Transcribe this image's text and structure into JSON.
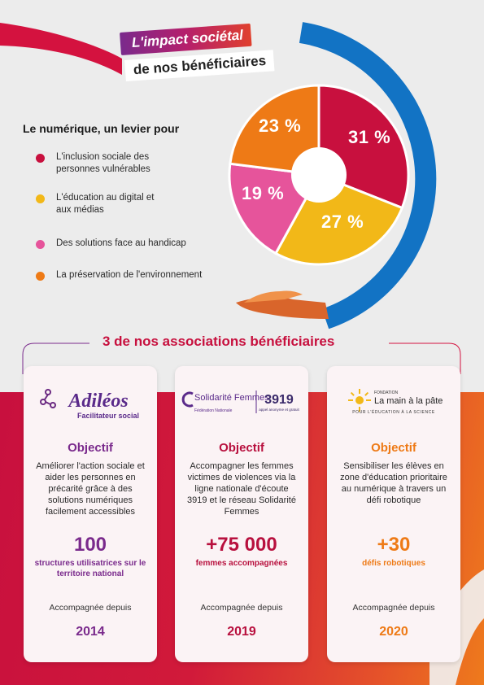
{
  "header": {
    "title_line1": "L'impact sociétal",
    "title_line2": "de nos bénéficiaires"
  },
  "lever": {
    "title": "Le numérique, un levier pour",
    "items": [
      {
        "label": "L'inclusion sociale des personnes vulnérables",
        "color": "#c8103e"
      },
      {
        "label": "L'éducation au digital et aux médias",
        "color": "#f2b818"
      },
      {
        "label": "Des solutions face au handicap",
        "color": "#e6549b"
      },
      {
        "label": "La préservation de l'environnement",
        "color": "#ee7a16"
      }
    ]
  },
  "chart_data": {
    "type": "pie",
    "categories": [
      "L'inclusion sociale des personnes vulnérables",
      "L'éducation au digital et aux médias",
      "Des solutions face au handicap",
      "La préservation de l'environnement"
    ],
    "values": [
      31,
      27,
      19,
      23
    ],
    "labels": [
      "31 %",
      "27 %",
      "19 %",
      "23 %"
    ],
    "colors": [
      "#c8103e",
      "#f2b818",
      "#e6549b",
      "#ee7a16"
    ]
  },
  "associations": {
    "title": "3 de nos associations bénéficiaires",
    "cards": [
      {
        "logo_text": "Adiléos",
        "logo_sub": "Facilitateur social",
        "objective": "Objectif",
        "description": "Améliorer l'action sociale et aider les personnes en précarité grâce à des solutions numériques facilement accessibles",
        "stat": "100",
        "stat_label": "structures utilisatrices sur le territoire national",
        "since_label": "Accompagnée depuis",
        "year": "2014",
        "color": "#7a2a8c"
      },
      {
        "logo_text": "Solidarité Femmes",
        "logo_sub": "Fédération Nationale",
        "logo_number": "3919",
        "logo_number_sub": "appel anonyme et gratuit",
        "objective": "Objectif",
        "description": "Accompagner les femmes victimes de violences via la ligne nationale d'écoute 3919 et le réseau Solidarité Femmes",
        "stat": "+75 000",
        "stat_label": "femmes accompagnées",
        "since_label": "Accompagnée depuis",
        "year": "2019",
        "color": "#b8103e"
      },
      {
        "logo_pre": "FONDATION",
        "logo_text": "La main à la pâte",
        "logo_sub": "POUR L'ÉDUCATION À LA SCIENCE",
        "objective": "Objectif",
        "description": "Sensibiliser les élèves en zone d'éducation prioritaire au numérique à travers un défi robotique",
        "stat": "+30",
        "stat_label": "défis robotiques",
        "since_label": "Accompagnée depuis",
        "year": "2020",
        "color": "#ee7a16"
      }
    ]
  }
}
